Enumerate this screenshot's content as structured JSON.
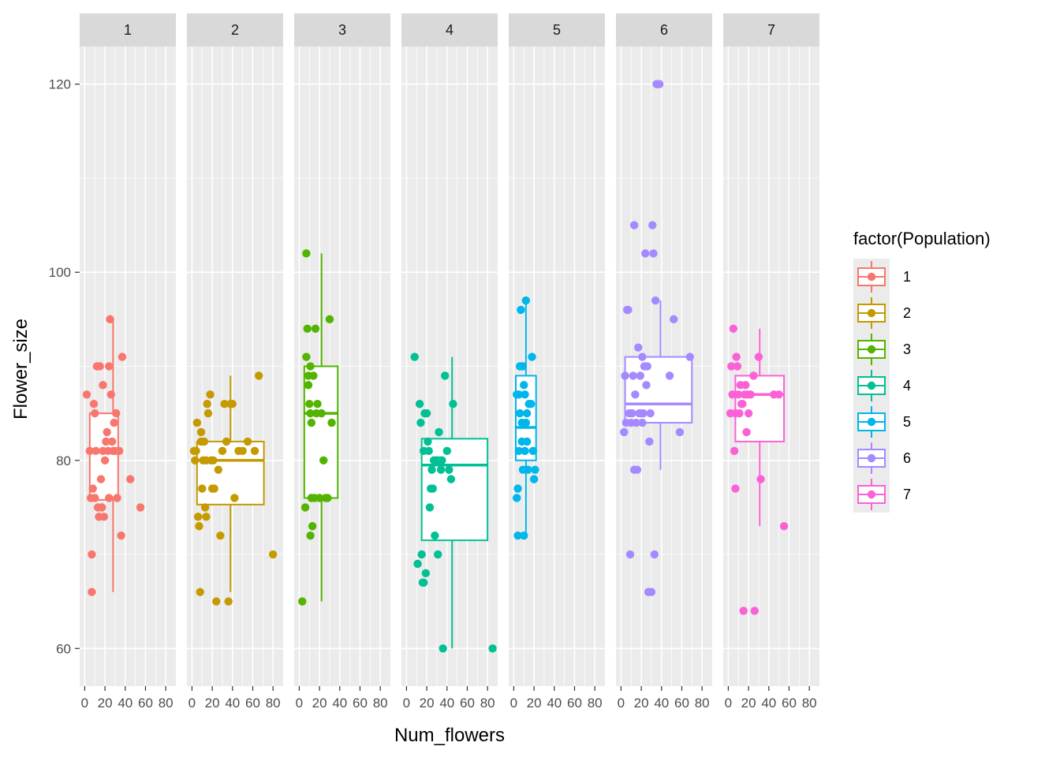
{
  "chart_data": {
    "type": "faceted-boxplot-jitter",
    "xlabel": "Num_flowers",
    "ylabel": "Flower_size",
    "ylim": [
      56,
      124
    ],
    "y_ticks": [
      60,
      80,
      100,
      120
    ],
    "xlim": [
      -5,
      90
    ],
    "x_ticks": [
      0,
      20,
      40,
      60,
      80
    ],
    "x_tick_labels": [
      "0",
      "20",
      "40",
      "60",
      "80"
    ],
    "legend_title": "factor(Population)",
    "legend_position": "right",
    "facets": [
      {
        "panel": "1",
        "color": "#F8766D",
        "box": {
          "x_left": 5,
          "x_right": 33,
          "q1": 75.8,
          "median": 81,
          "q3": 85,
          "whisker_low": 66,
          "whisker_high": 95,
          "whisker_x": 28
        },
        "points": [
          [
            2,
            87
          ],
          [
            5,
            81
          ],
          [
            6,
            76
          ],
          [
            7,
            70
          ],
          [
            7,
            66
          ],
          [
            8,
            77
          ],
          [
            9,
            86
          ],
          [
            10,
            85
          ],
          [
            11,
            81
          ],
          [
            12,
            90
          ],
          [
            13,
            75
          ],
          [
            14,
            74
          ],
          [
            15,
            90
          ],
          [
            16,
            78
          ],
          [
            17,
            75
          ],
          [
            18,
            81
          ],
          [
            19,
            74
          ],
          [
            20,
            80
          ],
          [
            21,
            82
          ],
          [
            22,
            83
          ],
          [
            23,
            81
          ],
          [
            24,
            90
          ],
          [
            25,
            95
          ],
          [
            26,
            87
          ],
          [
            27,
            82
          ],
          [
            28,
            81
          ],
          [
            29,
            84
          ],
          [
            30,
            81
          ],
          [
            31,
            85
          ],
          [
            32,
            76
          ],
          [
            34,
            81
          ],
          [
            36,
            72
          ],
          [
            37,
            91
          ],
          [
            45,
            78
          ],
          [
            55,
            75
          ],
          [
            18,
            88
          ],
          [
            10,
            76
          ],
          [
            24,
            76
          ]
        ]
      },
      {
        "panel": "2",
        "color": "#C49A00",
        "box": {
          "x_left": 5,
          "x_right": 71,
          "q1": 75.3,
          "median": 80,
          "q3": 82,
          "whisker_low": 66,
          "whisker_high": 89,
          "whisker_x": 38
        },
        "points": [
          [
            2,
            81
          ],
          [
            3,
            80
          ],
          [
            4,
            81
          ],
          [
            5,
            84
          ],
          [
            6,
            74
          ],
          [
            7,
            73
          ],
          [
            8,
            66
          ],
          [
            9,
            83
          ],
          [
            10,
            77
          ],
          [
            11,
            80
          ],
          [
            12,
            82
          ],
          [
            13,
            75
          ],
          [
            14,
            74
          ],
          [
            15,
            86
          ],
          [
            16,
            85
          ],
          [
            18,
            87
          ],
          [
            19,
            80
          ],
          [
            20,
            77
          ],
          [
            22,
            77
          ],
          [
            24,
            65
          ],
          [
            26,
            79
          ],
          [
            28,
            72
          ],
          [
            30,
            81
          ],
          [
            32,
            86
          ],
          [
            34,
            82
          ],
          [
            36,
            65
          ],
          [
            38,
            86
          ],
          [
            40,
            86
          ],
          [
            42,
            76
          ],
          [
            46,
            81
          ],
          [
            50,
            81
          ],
          [
            55,
            82
          ],
          [
            62,
            81
          ],
          [
            66,
            89
          ],
          [
            80,
            70
          ],
          [
            14,
            80
          ],
          [
            9,
            82
          ],
          [
            21,
            80
          ]
        ]
      },
      {
        "panel": "3",
        "color": "#53B400",
        "box": {
          "x_left": 5,
          "x_right": 38,
          "q1": 76,
          "median": 85,
          "q3": 90,
          "whisker_low": 65,
          "whisker_high": 102,
          "whisker_x": 22
        },
        "points": [
          [
            3,
            65
          ],
          [
            6,
            75
          ],
          [
            7,
            102
          ],
          [
            8,
            94
          ],
          [
            9,
            89
          ],
          [
            9,
            88
          ],
          [
            10,
            86
          ],
          [
            11,
            85
          ],
          [
            11,
            72
          ],
          [
            12,
            84
          ],
          [
            13,
            73
          ],
          [
            14,
            89
          ],
          [
            15,
            76
          ],
          [
            16,
            94
          ],
          [
            17,
            85
          ],
          [
            18,
            86
          ],
          [
            20,
            76
          ],
          [
            22,
            85
          ],
          [
            24,
            80
          ],
          [
            26,
            76
          ],
          [
            28,
            76
          ],
          [
            30,
            95
          ],
          [
            32,
            84
          ],
          [
            7,
            91
          ],
          [
            11,
            90
          ],
          [
            12,
            76
          ]
        ]
      },
      {
        "panel": "4",
        "color": "#00C094",
        "box": {
          "x_left": 15,
          "x_right": 80,
          "q1": 71.5,
          "median": 79.5,
          "q3": 82.3,
          "whisker_low": 60,
          "whisker_high": 91,
          "whisker_x": 45
        },
        "points": [
          [
            8,
            91
          ],
          [
            11,
            69
          ],
          [
            13,
            86
          ],
          [
            14,
            84
          ],
          [
            15,
            70
          ],
          [
            16,
            67
          ],
          [
            17,
            67
          ],
          [
            18,
            85
          ],
          [
            19,
            68
          ],
          [
            20,
            85
          ],
          [
            21,
            82
          ],
          [
            22,
            81
          ],
          [
            23,
            75
          ],
          [
            24,
            77
          ],
          [
            25,
            79
          ],
          [
            26,
            77
          ],
          [
            27,
            80
          ],
          [
            28,
            72
          ],
          [
            30,
            80
          ],
          [
            31,
            70
          ],
          [
            32,
            83
          ],
          [
            33,
            80
          ],
          [
            34,
            79
          ],
          [
            36,
            60
          ],
          [
            38,
            89
          ],
          [
            40,
            81
          ],
          [
            42,
            79
          ],
          [
            44,
            78
          ],
          [
            46,
            86
          ],
          [
            85,
            60
          ],
          [
            17,
            81
          ],
          [
            29,
            80
          ],
          [
            35,
            80
          ]
        ]
      },
      {
        "panel": "5",
        "color": "#00B6EB",
        "box": {
          "x_left": 2,
          "x_right": 22,
          "q1": 80,
          "median": 83.5,
          "q3": 89,
          "whisker_low": 72,
          "whisker_high": 97,
          "whisker_x": 12
        },
        "points": [
          [
            3,
            76
          ],
          [
            4,
            77
          ],
          [
            4,
            72
          ],
          [
            5,
            81
          ],
          [
            5,
            87
          ],
          [
            6,
            85
          ],
          [
            6,
            90
          ],
          [
            7,
            96
          ],
          [
            8,
            84
          ],
          [
            8,
            82
          ],
          [
            9,
            90
          ],
          [
            9,
            79
          ],
          [
            10,
            72
          ],
          [
            11,
            81
          ],
          [
            11,
            87
          ],
          [
            12,
            84
          ],
          [
            12,
            97
          ],
          [
            13,
            85
          ],
          [
            14,
            79
          ],
          [
            15,
            86
          ],
          [
            17,
            86
          ],
          [
            18,
            91
          ],
          [
            19,
            81
          ],
          [
            20,
            78
          ],
          [
            21,
            79
          ],
          [
            3,
            87
          ],
          [
            13,
            82
          ],
          [
            10,
            88
          ]
        ]
      },
      {
        "panel": "6",
        "color": "#A58AFF",
        "box": {
          "x_left": 4,
          "x_right": 70,
          "q1": 84,
          "median": 86,
          "q3": 91,
          "whisker_low": 79,
          "whisker_high": 97,
          "whisker_x": 39
        },
        "points": [
          [
            3,
            83
          ],
          [
            4,
            89
          ],
          [
            5,
            84
          ],
          [
            6,
            96
          ],
          [
            7,
            96
          ],
          [
            8,
            85
          ],
          [
            9,
            70
          ],
          [
            10,
            84
          ],
          [
            12,
            89
          ],
          [
            13,
            79
          ],
          [
            14,
            87
          ],
          [
            15,
            84
          ],
          [
            16,
            79
          ],
          [
            17,
            92
          ],
          [
            18,
            85
          ],
          [
            19,
            89
          ],
          [
            20,
            85
          ],
          [
            21,
            84
          ],
          [
            22,
            85
          ],
          [
            23,
            90
          ],
          [
            24,
            102
          ],
          [
            25,
            88
          ],
          [
            26,
            90
          ],
          [
            27,
            66
          ],
          [
            28,
            82
          ],
          [
            29,
            85
          ],
          [
            30,
            66
          ],
          [
            31,
            105
          ],
          [
            32,
            102
          ],
          [
            33,
            70
          ],
          [
            34,
            97
          ],
          [
            35,
            120
          ],
          [
            36,
            120
          ],
          [
            38,
            120
          ],
          [
            48,
            89
          ],
          [
            52,
            95
          ],
          [
            58,
            83
          ],
          [
            68,
            91
          ],
          [
            13,
            105
          ],
          [
            21,
            91
          ],
          [
            11,
            85
          ]
        ]
      },
      {
        "panel": "7",
        "color": "#FB61D7",
        "box": {
          "x_left": 7,
          "x_right": 55,
          "q1": 82,
          "median": 87,
          "q3": 89,
          "whisker_low": 73,
          "whisker_high": 94,
          "whisker_x": 31
        },
        "points": [
          [
            2,
            85
          ],
          [
            3,
            90
          ],
          [
            4,
            87
          ],
          [
            5,
            94
          ],
          [
            6,
            81
          ],
          [
            7,
            77
          ],
          [
            8,
            91
          ],
          [
            9,
            90
          ],
          [
            10,
            87
          ],
          [
            11,
            85
          ],
          [
            12,
            88
          ],
          [
            14,
            86
          ],
          [
            15,
            64
          ],
          [
            16,
            87
          ],
          [
            17,
            88
          ],
          [
            18,
            83
          ],
          [
            20,
            85
          ],
          [
            22,
            87
          ],
          [
            25,
            89
          ],
          [
            26,
            64
          ],
          [
            30,
            91
          ],
          [
            32,
            78
          ],
          [
            45,
            87
          ],
          [
            50,
            87
          ],
          [
            55,
            73
          ],
          [
            7,
            85
          ],
          [
            13,
            86
          ],
          [
            19,
            87
          ]
        ]
      }
    ]
  }
}
